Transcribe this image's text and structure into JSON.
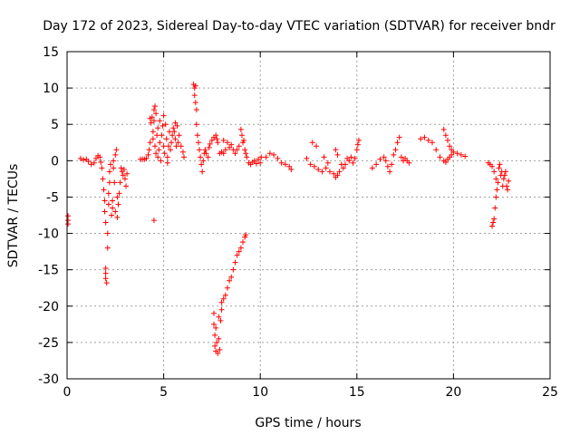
{
  "chart_data": {
    "type": "scatter",
    "title": "Day 172 of 2023, Sidereal Day-to-day VTEC variation (SDTVAR) for receiver bndr",
    "xlabel": "GPS time / hours",
    "ylabel": "SDTVAR / TECUs",
    "xlim": [
      0,
      25
    ],
    "ylim": [
      -30,
      15
    ],
    "xticks": [
      "0",
      "5",
      "10",
      "15",
      "20",
      "25"
    ],
    "yticks": [
      "15",
      "10",
      "5",
      "0",
      "-5",
      "-10",
      "-15",
      "-20",
      "-25",
      "-30"
    ],
    "grid": true,
    "marker": "+",
    "color": "#ff0000",
    "series": [
      {
        "name": "bndr",
        "points": [
          [
            0.05,
            -7.6
          ],
          [
            0.05,
            -8.2
          ],
          [
            0.05,
            -8.7
          ],
          [
            0.7,
            0.3
          ],
          [
            0.85,
            0.1
          ],
          [
            1.0,
            0.2
          ],
          [
            1.1,
            -0.1
          ],
          [
            1.25,
            -0.5
          ],
          [
            1.4,
            -0.3
          ],
          [
            1.5,
            0.3
          ],
          [
            1.6,
            0.7
          ],
          [
            1.7,
            0.5
          ],
          [
            1.75,
            -0.2
          ],
          [
            1.8,
            -1.0
          ],
          [
            1.85,
            -2.5
          ],
          [
            1.9,
            -4.0
          ],
          [
            1.95,
            -5.5
          ],
          [
            1.95,
            -7.0
          ],
          [
            2.0,
            -8.5
          ],
          [
            2.0,
            -14.8
          ],
          [
            2.0,
            -15.5
          ],
          [
            2.0,
            -16.2
          ],
          [
            2.05,
            -16.8
          ],
          [
            2.1,
            -12.0
          ],
          [
            2.1,
            -10.0
          ],
          [
            2.15,
            -6.0
          ],
          [
            2.15,
            -4.5
          ],
          [
            2.2,
            -3.0
          ],
          [
            2.2,
            -1.5
          ],
          [
            2.25,
            -0.5
          ],
          [
            2.3,
            -7.5
          ],
          [
            2.35,
            -5.5
          ],
          [
            2.35,
            -6.5
          ],
          [
            2.4,
            -1.0
          ],
          [
            2.4,
            0.0
          ],
          [
            2.45,
            -3.0
          ],
          [
            2.5,
            0.8
          ],
          [
            2.5,
            -7.0
          ],
          [
            2.55,
            1.5
          ],
          [
            2.6,
            -5.0
          ],
          [
            2.6,
            -7.8
          ],
          [
            2.65,
            -6.0
          ],
          [
            2.7,
            -4.5
          ],
          [
            2.75,
            -3.0
          ],
          [
            2.8,
            -1.0
          ],
          [
            2.85,
            -1.5
          ],
          [
            2.9,
            -2.0
          ],
          [
            2.95,
            -1.2
          ],
          [
            3.0,
            -2.5
          ],
          [
            3.05,
            -3.5
          ],
          [
            3.1,
            -1.8
          ],
          [
            3.8,
            0.2
          ],
          [
            3.9,
            0.2
          ],
          [
            4.0,
            0.2
          ],
          [
            4.1,
            0.3
          ],
          [
            4.2,
            0.8
          ],
          [
            4.25,
            1.5
          ],
          [
            4.3,
            2.5
          ],
          [
            4.3,
            5.8
          ],
          [
            4.35,
            5.2
          ],
          [
            4.4,
            6.0
          ],
          [
            4.45,
            4.0
          ],
          [
            4.45,
            3.0
          ],
          [
            4.5,
            7.0
          ],
          [
            4.5,
            5.5
          ],
          [
            4.55,
            7.5
          ],
          [
            4.55,
            2.0
          ],
          [
            4.6,
            1.0
          ],
          [
            4.6,
            6.5
          ],
          [
            4.65,
            3.5
          ],
          [
            4.7,
            4.5
          ],
          [
            4.7,
            0.5
          ],
          [
            4.75,
            1.5
          ],
          [
            4.8,
            5.5
          ],
          [
            4.8,
            2.5
          ],
          [
            4.85,
            0.0
          ],
          [
            4.9,
            3.5
          ],
          [
            4.95,
            4.8
          ],
          [
            5.0,
            6.2
          ],
          [
            5.0,
            2.0
          ],
          [
            5.05,
            1.0
          ],
          [
            5.1,
            5.0
          ],
          [
            5.15,
            3.0
          ],
          [
            5.2,
            0.5
          ],
          [
            5.2,
            -0.3
          ],
          [
            5.25,
            2.0
          ],
          [
            5.3,
            4.0
          ],
          [
            5.35,
            1.5
          ],
          [
            5.4,
            2.5
          ],
          [
            5.45,
            3.5
          ],
          [
            5.5,
            4.5
          ],
          [
            5.55,
            4.0
          ],
          [
            5.6,
            3.0
          ],
          [
            5.6,
            5.2
          ],
          [
            5.65,
            2.0
          ],
          [
            5.7,
            4.8
          ],
          [
            5.75,
            2.5
          ],
          [
            5.8,
            3.5
          ],
          [
            5.9,
            2.0
          ],
          [
            6.0,
            1.2
          ],
          [
            6.05,
            0.5
          ],
          [
            4.5,
            -8.2
          ],
          [
            6.55,
            10.5
          ],
          [
            6.6,
            10.0
          ],
          [
            6.6,
            9.0
          ],
          [
            6.65,
            10.3
          ],
          [
            6.65,
            8.0
          ],
          [
            6.7,
            7.0
          ],
          [
            6.7,
            5.0
          ],
          [
            6.75,
            3.5
          ],
          [
            6.8,
            2.5
          ],
          [
            6.85,
            1.5
          ],
          [
            6.9,
            0.5
          ],
          [
            6.95,
            -0.5
          ],
          [
            7.0,
            -1.5
          ],
          [
            7.05,
            0.0
          ],
          [
            7.1,
            1.0
          ],
          [
            7.15,
            1.5
          ],
          [
            7.2,
            1.0
          ],
          [
            7.3,
            0.5
          ],
          [
            7.35,
            1.8
          ],
          [
            7.4,
            2.3
          ],
          [
            7.5,
            2.8
          ],
          [
            7.6,
            3.2
          ],
          [
            7.7,
            3.5
          ],
          [
            7.75,
            3.0
          ],
          [
            7.8,
            2.5
          ],
          [
            7.9,
            1.0
          ],
          [
            8.0,
            1.2
          ],
          [
            8.1,
            1.0
          ],
          [
            8.2,
            1.5
          ],
          [
            8.3,
            2.5
          ],
          [
            8.4,
            1.8
          ],
          [
            8.5,
            2.2
          ],
          [
            8.6,
            1.5
          ],
          [
            8.7,
            1.0
          ],
          [
            8.8,
            1.5
          ],
          [
            8.9,
            2.0
          ],
          [
            9.0,
            4.3
          ],
          [
            9.05,
            3.5
          ],
          [
            9.1,
            2.5
          ],
          [
            9.15,
            2.8
          ],
          [
            9.2,
            1.5
          ],
          [
            9.25,
            1.0
          ],
          [
            9.3,
            0.5
          ],
          [
            9.4,
            -0.3
          ],
          [
            9.5,
            -0.5
          ],
          [
            9.6,
            -0.2
          ],
          [
            9.7,
            0.0
          ],
          [
            9.8,
            -0.4
          ],
          [
            9.9,
            0.2
          ],
          [
            10.0,
            -0.3
          ],
          [
            10.05,
            0.5
          ],
          [
            8.1,
            2.8
          ],
          [
            7.6,
            -21.0
          ],
          [
            7.6,
            -22.5
          ],
          [
            7.65,
            -24.0
          ],
          [
            7.65,
            -25.5
          ],
          [
            7.7,
            -26.2
          ],
          [
            7.7,
            -23.0
          ],
          [
            7.75,
            -25.0
          ],
          [
            7.8,
            -26.5
          ],
          [
            7.85,
            -24.5
          ],
          [
            7.85,
            -21.5
          ],
          [
            7.9,
            -26.0
          ],
          [
            7.95,
            -22.0
          ],
          [
            8.0,
            -20.5
          ],
          [
            8.0,
            -19.5
          ],
          [
            8.1,
            -19.0
          ],
          [
            8.2,
            -18.5
          ],
          [
            8.3,
            -17.5
          ],
          [
            8.4,
            -16.5
          ],
          [
            8.5,
            -16.0
          ],
          [
            8.6,
            -15.0
          ],
          [
            8.7,
            -14.0
          ],
          [
            8.8,
            -13.0
          ],
          [
            8.9,
            -12.5
          ],
          [
            9.0,
            -12.0
          ],
          [
            9.1,
            -11.2
          ],
          [
            9.2,
            -10.5
          ],
          [
            9.25,
            -10.2
          ],
          [
            10.3,
            0.5
          ],
          [
            10.5,
            1.0
          ],
          [
            10.7,
            0.8
          ],
          [
            10.9,
            0.3
          ],
          [
            11.1,
            -0.3
          ],
          [
            11.3,
            -0.5
          ],
          [
            11.5,
            -0.8
          ],
          [
            11.6,
            -1.2
          ],
          [
            12.4,
            0.3
          ],
          [
            12.6,
            -0.5
          ],
          [
            12.8,
            -0.8
          ],
          [
            13.0,
            -1.2
          ],
          [
            13.2,
            -1.5
          ],
          [
            13.4,
            -1.0
          ],
          [
            13.6,
            -1.5
          ],
          [
            13.8,
            -1.8
          ],
          [
            13.9,
            -2.3
          ],
          [
            14.0,
            -2.0
          ],
          [
            14.1,
            -1.5
          ],
          [
            14.2,
            -0.5
          ],
          [
            14.3,
            -1.0
          ],
          [
            14.4,
            -0.5
          ],
          [
            14.5,
            0.3
          ],
          [
            14.6,
            0.0
          ],
          [
            14.7,
            0.5
          ],
          [
            14.8,
            -0.3
          ],
          [
            14.9,
            0.3
          ],
          [
            15.0,
            1.5
          ],
          [
            15.05,
            2.2
          ],
          [
            15.1,
            2.8
          ],
          [
            12.7,
            2.5
          ],
          [
            12.9,
            2.0
          ],
          [
            13.3,
            0.5
          ],
          [
            13.5,
            -0.3
          ],
          [
            13.9,
            1.5
          ],
          [
            14.0,
            0.8
          ],
          [
            15.8,
            -1.0
          ],
          [
            16.0,
            -0.5
          ],
          [
            16.2,
            0.2
          ],
          [
            16.4,
            0.5
          ],
          [
            16.5,
            0.0
          ],
          [
            16.6,
            -0.8
          ],
          [
            16.7,
            -1.5
          ],
          [
            16.8,
            -0.5
          ],
          [
            16.9,
            0.8
          ],
          [
            17.0,
            1.5
          ],
          [
            17.1,
            2.5
          ],
          [
            17.2,
            3.2
          ],
          [
            17.3,
            0.5
          ],
          [
            17.4,
            0.0
          ],
          [
            17.5,
            0.3
          ],
          [
            17.6,
            0.0
          ],
          [
            17.7,
            -0.3
          ],
          [
            18.3,
            3.0
          ],
          [
            18.5,
            3.2
          ],
          [
            18.7,
            2.8
          ],
          [
            18.9,
            2.5
          ],
          [
            19.1,
            1.5
          ],
          [
            19.3,
            0.5
          ],
          [
            19.5,
            0.0
          ],
          [
            19.6,
            -0.2
          ],
          [
            19.7,
            0.2
          ],
          [
            19.8,
            0.5
          ],
          [
            19.9,
            0.8
          ],
          [
            19.5,
            4.3
          ],
          [
            19.6,
            3.5
          ],
          [
            19.7,
            2.8
          ],
          [
            19.8,
            2.0
          ],
          [
            19.9,
            1.5
          ],
          [
            20.0,
            1.2
          ],
          [
            20.2,
            1.0
          ],
          [
            20.4,
            0.8
          ],
          [
            20.6,
            0.6
          ],
          [
            21.8,
            -0.3
          ],
          [
            21.9,
            -0.5
          ],
          [
            22.0,
            -0.8
          ],
          [
            22.0,
            -9.0
          ],
          [
            22.05,
            -8.5
          ],
          [
            22.1,
            -8.0
          ],
          [
            22.1,
            -1.5
          ],
          [
            22.15,
            -6.5
          ],
          [
            22.2,
            -5.0
          ],
          [
            22.2,
            -2.5
          ],
          [
            22.25,
            -4.0
          ],
          [
            22.3,
            -3.0
          ],
          [
            22.35,
            -1.0
          ],
          [
            22.4,
            -0.5
          ],
          [
            22.45,
            -2.0
          ],
          [
            22.5,
            -1.5
          ],
          [
            22.55,
            -3.5
          ],
          [
            22.6,
            -2.5
          ],
          [
            22.65,
            -2.0
          ],
          [
            22.7,
            -1.5
          ],
          [
            22.75,
            -3.5
          ],
          [
            22.8,
            -4.0
          ],
          [
            22.85,
            -2.8
          ]
        ]
      }
    ]
  }
}
